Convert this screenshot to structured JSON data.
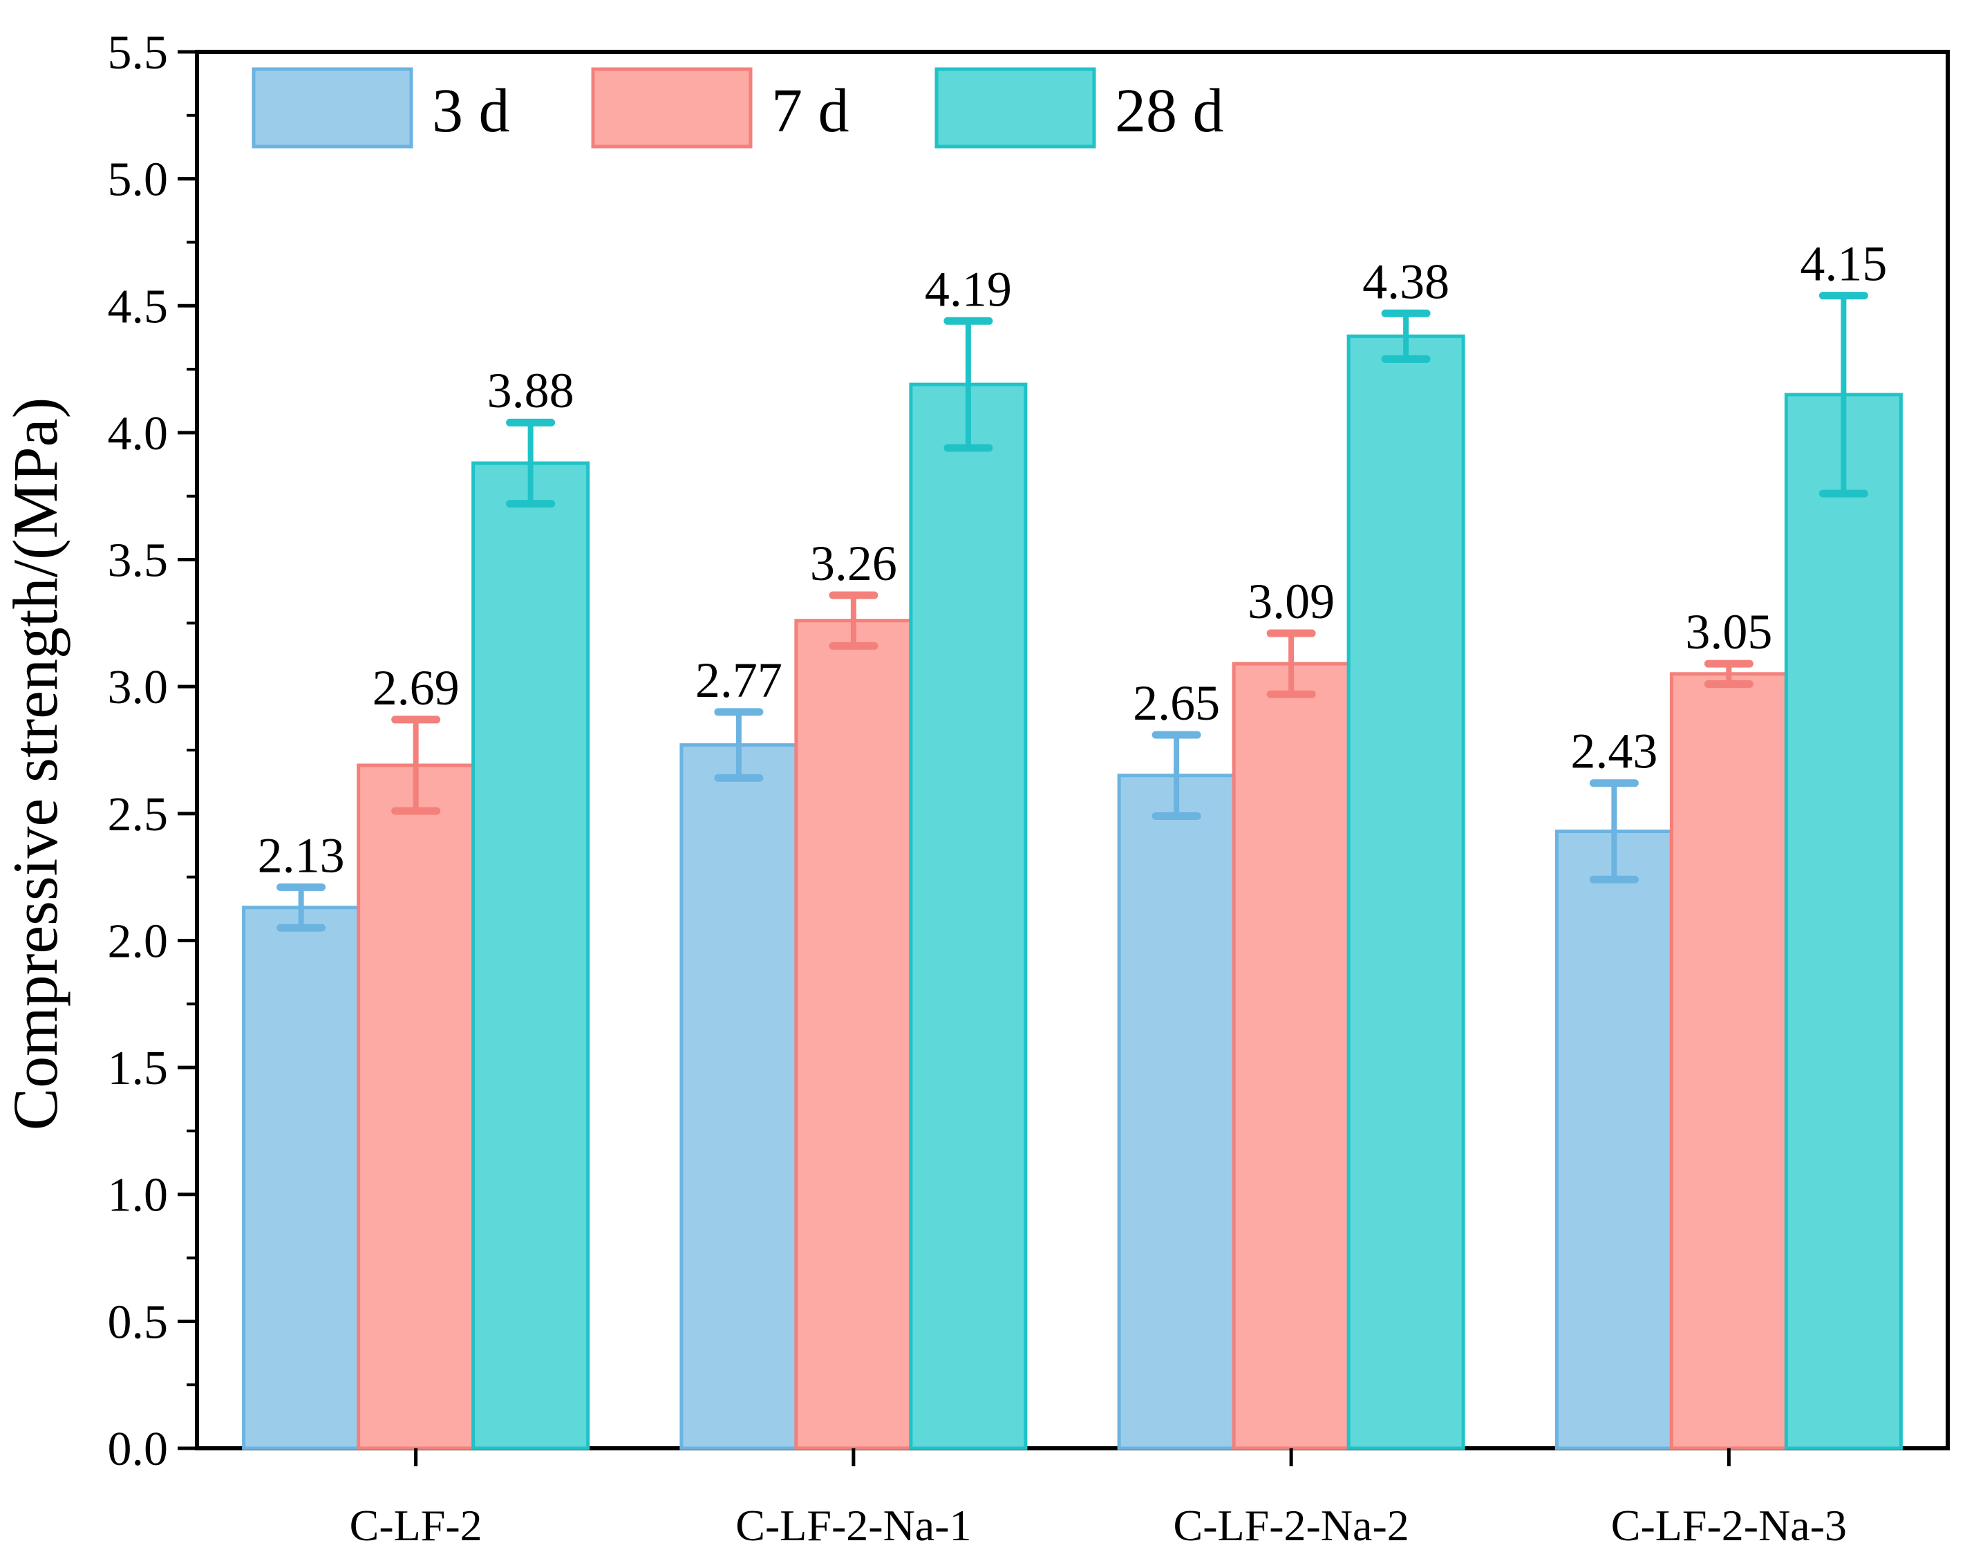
{
  "chart_data": {
    "type": "bar",
    "title": "",
    "xlabel": "",
    "ylabel": "Compressive strength/(MPa)",
    "ylim": [
      0,
      5.5
    ],
    "yticks": [
      "0.0",
      "0.5",
      "1.0",
      "1.5",
      "2.0",
      "2.5",
      "3.0",
      "3.5",
      "4.0",
      "4.5",
      "5.0",
      "5.5"
    ],
    "categories": [
      "C-LF-2",
      "C-LF-2-Na-1",
      "C-LF-2-Na-2",
      "C-LF-2-Na-3"
    ],
    "legend_position": "top-left",
    "grid": false,
    "series": [
      {
        "name": "3 d",
        "color": "#9BCDEB",
        "edge_color": "#6BB3E0",
        "values": [
          2.13,
          2.77,
          2.65,
          2.43
        ],
        "error": [
          0.08,
          0.13,
          0.16,
          0.19
        ],
        "labels": [
          "2.13",
          "2.77",
          "2.65",
          "2.43"
        ]
      },
      {
        "name": "7 d",
        "color": "#FDA9A4",
        "edge_color": "#F3807B",
        "values": [
          2.69,
          3.26,
          3.09,
          3.05
        ],
        "error": [
          0.18,
          0.1,
          0.12,
          0.04
        ],
        "labels": [
          "2.69",
          "3.26",
          "3.09",
          "3.05"
        ]
      },
      {
        "name": "28 d",
        "color": "#5ED8D8",
        "edge_color": "#1FC3C7",
        "values": [
          3.88,
          4.19,
          4.38,
          4.15
        ],
        "error": [
          0.16,
          0.25,
          0.09,
          0.39
        ],
        "labels": [
          "3.88",
          "4.19",
          "4.38",
          "4.15"
        ]
      }
    ]
  }
}
